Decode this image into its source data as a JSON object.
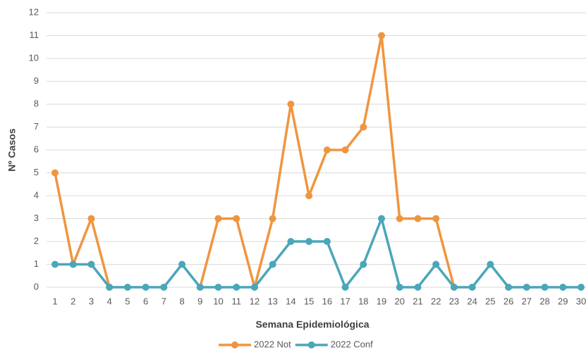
{
  "chart_data": {
    "type": "line",
    "x_label": "Semana Epidemiológica",
    "y_label": "Nº Casos",
    "categories": [
      1,
      2,
      3,
      4,
      5,
      6,
      7,
      8,
      9,
      10,
      11,
      12,
      13,
      14,
      15,
      16,
      17,
      18,
      19,
      20,
      21,
      22,
      23,
      24,
      25,
      26,
      27,
      28,
      29,
      30
    ],
    "series": [
      {
        "name": "2022 Not",
        "color": "#f0953f",
        "values": [
          5,
          1,
          3,
          0,
          null,
          null,
          null,
          null,
          0,
          3,
          3,
          0,
          3,
          8,
          4,
          6,
          6,
          7,
          11,
          3,
          3,
          3,
          0,
          null,
          null,
          null,
          null,
          null,
          null,
          null
        ]
      },
      {
        "name": "2022 Conf",
        "color": "#4aa6b9",
        "values": [
          1,
          1,
          1,
          0,
          0,
          0,
          0,
          1,
          0,
          0,
          0,
          0,
          1,
          2,
          2,
          2,
          0,
          1,
          3,
          0,
          0,
          1,
          0,
          0,
          1,
          0,
          0,
          0,
          0,
          0
        ]
      }
    ],
    "ylim": [
      0,
      12
    ],
    "yticks": [
      0,
      1,
      2,
      3,
      4,
      5,
      6,
      7,
      8,
      9,
      10,
      11,
      12
    ],
    "grid": true,
    "legend": "bottom"
  }
}
